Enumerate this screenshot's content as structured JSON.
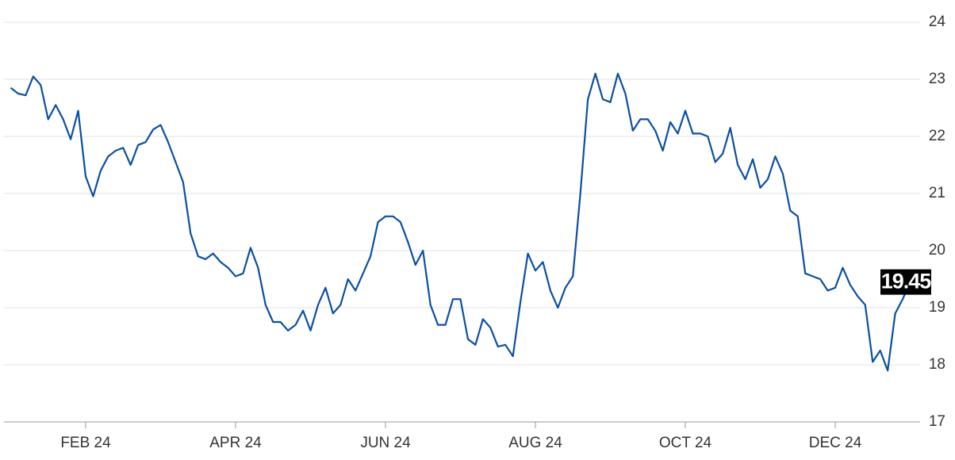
{
  "chart_data": {
    "type": "line",
    "categories": [
      null,
      null,
      null,
      null,
      null,
      null,
      null,
      null,
      null,
      null,
      "FEB 24",
      null,
      null,
      null,
      null,
      null,
      null,
      null,
      null,
      null,
      null,
      null,
      null,
      null,
      null,
      null,
      null,
      null,
      null,
      null,
      "APR 24",
      null,
      null,
      null,
      null,
      null,
      null,
      null,
      null,
      null,
      null,
      null,
      null,
      null,
      null,
      null,
      null,
      null,
      null,
      null,
      "JUN 24",
      null,
      null,
      null,
      null,
      null,
      null,
      null,
      null,
      null,
      null,
      null,
      null,
      null,
      null,
      null,
      null,
      null,
      null,
      null,
      "AUG 24",
      null,
      null,
      null,
      null,
      null,
      null,
      null,
      null,
      null,
      null,
      null,
      null,
      null,
      null,
      null,
      null,
      null,
      null,
      null,
      "OCT 24",
      null,
      null,
      null,
      null,
      null,
      null,
      null,
      null,
      null,
      null,
      null,
      null,
      null,
      null,
      null,
      null,
      null,
      null,
      null,
      "DEC 24",
      null,
      null,
      null,
      null,
      null,
      null,
      null,
      null,
      null,
      null
    ],
    "values": [
      22.85,
      22.75,
      22.72,
      23.05,
      22.9,
      22.3,
      22.55,
      22.3,
      21.95,
      22.45,
      21.3,
      20.95,
      21.4,
      21.65,
      21.75,
      21.8,
      21.5,
      21.85,
      21.9,
      22.12,
      22.2,
      21.9,
      21.55,
      21.2,
      20.3,
      19.9,
      19.85,
      19.95,
      19.8,
      19.7,
      19.55,
      19.6,
      20.05,
      19.7,
      19.05,
      18.75,
      18.75,
      18.6,
      18.7,
      18.95,
      18.6,
      19.05,
      19.35,
      18.9,
      19.05,
      19.5,
      19.3,
      19.6,
      19.9,
      20.5,
      20.6,
      20.6,
      20.5,
      20.15,
      19.75,
      20.0,
      19.05,
      18.7,
      18.7,
      19.15,
      19.15,
      18.45,
      18.35,
      18.8,
      18.65,
      18.32,
      18.35,
      18.15,
      19.1,
      19.95,
      19.65,
      19.8,
      19.3,
      19.0,
      19.35,
      19.55,
      21.0,
      22.65,
      23.1,
      22.65,
      22.6,
      23.1,
      22.75,
      22.1,
      22.3,
      22.3,
      22.1,
      21.75,
      22.25,
      22.05,
      22.45,
      22.05,
      22.05,
      22.0,
      21.55,
      21.7,
      22.15,
      21.5,
      21.25,
      21.6,
      21.1,
      21.25,
      21.65,
      21.35,
      20.7,
      20.6,
      19.6,
      19.55,
      19.5,
      19.3,
      19.35,
      19.7,
      19.4,
      19.2,
      19.05,
      18.05,
      18.25,
      17.9,
      18.9,
      19.15,
      19.45
    ],
    "color": "#0b4fa0",
    "ylim": [
      17,
      24
    ],
    "yticks": [
      17,
      18,
      19,
      20,
      21,
      22,
      23,
      24
    ],
    "grid": true
  }
}
